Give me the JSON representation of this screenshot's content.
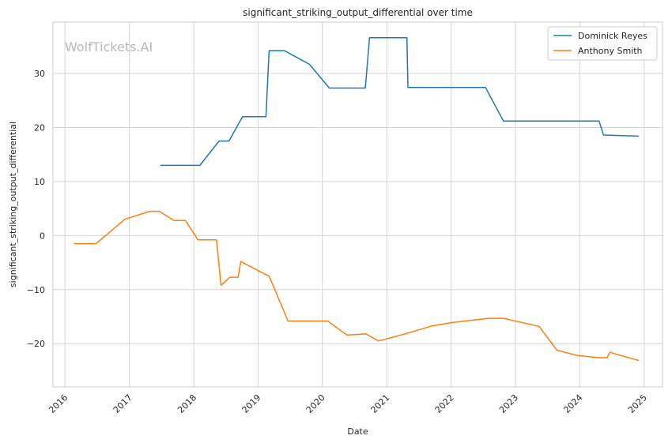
{
  "chart_data": {
    "type": "line",
    "title": "significant_striking_output_differential over time",
    "xlabel": "Date",
    "ylabel": "significant_striking_output_differential",
    "watermark": "WolfTickets.AI",
    "xlim": [
      "2015-10-25",
      "2025-04-15"
    ],
    "ylim": [
      -28,
      39.5
    ],
    "x_ticks": [
      "2016",
      "2017",
      "2018",
      "2019",
      "2020",
      "2021",
      "2022",
      "2023",
      "2024",
      "2025"
    ],
    "y_ticks": [
      -20,
      -10,
      0,
      10,
      20,
      30
    ],
    "y_tick_labels": [
      "−20",
      "−10",
      "0",
      "10",
      "20",
      "30"
    ],
    "grid": true,
    "legend_position": "top-right",
    "series": [
      {
        "name": "Dominick Reyes",
        "color": "#1f77b4",
        "points": [
          [
            "2017-06-25",
            13.0
          ],
          [
            "2018-02-05",
            13.0
          ],
          [
            "2018-05-25",
            17.5
          ],
          [
            "2018-07-20",
            17.5
          ],
          [
            "2018-10-05",
            22.0
          ],
          [
            "2019-02-15",
            22.0
          ],
          [
            "2019-03-05",
            34.2
          ],
          [
            "2019-06-01",
            34.2
          ],
          [
            "2019-10-20",
            31.7
          ],
          [
            "2020-02-10",
            27.3
          ],
          [
            "2020-09-01",
            27.3
          ],
          [
            "2020-09-25",
            36.6
          ],
          [
            "2021-04-25",
            36.6
          ],
          [
            "2021-05-01",
            27.4
          ],
          [
            "2022-07-15",
            27.4
          ],
          [
            "2022-10-25",
            21.2
          ],
          [
            "2024-04-20",
            21.2
          ],
          [
            "2024-05-15",
            18.6
          ],
          [
            "2024-12-01",
            18.4
          ]
        ]
      },
      {
        "name": "Anthony Smith",
        "color": "#ff7f0e",
        "points": [
          [
            "2016-02-20",
            -1.5
          ],
          [
            "2016-06-25",
            -1.5
          ],
          [
            "2016-12-05",
            3.0
          ],
          [
            "2017-04-25",
            4.5
          ],
          [
            "2017-06-20",
            4.5
          ],
          [
            "2017-09-10",
            2.8
          ],
          [
            "2017-11-15",
            2.8
          ],
          [
            "2018-01-25",
            -0.8
          ],
          [
            "2018-05-10",
            -0.8
          ],
          [
            "2018-06-05",
            -9.2
          ],
          [
            "2018-07-25",
            -7.7
          ],
          [
            "2018-09-10",
            -7.7
          ],
          [
            "2018-09-25",
            -4.8
          ],
          [
            "2019-02-20",
            -7.3
          ],
          [
            "2019-03-05",
            -7.5
          ],
          [
            "2019-06-20",
            -15.8
          ],
          [
            "2020-02-01",
            -15.8
          ],
          [
            "2020-05-20",
            -18.4
          ],
          [
            "2020-09-05",
            -18.2
          ],
          [
            "2020-11-15",
            -19.5
          ],
          [
            "2021-04-25",
            -18.1
          ],
          [
            "2021-09-15",
            -16.7
          ],
          [
            "2022-01-01",
            -16.1
          ],
          [
            "2022-08-01",
            -15.3
          ],
          [
            "2022-10-25",
            -15.3
          ],
          [
            "2023-05-15",
            -16.8
          ],
          [
            "2023-08-25",
            -21.2
          ],
          [
            "2023-12-20",
            -22.2
          ],
          [
            "2024-04-20",
            -22.6
          ],
          [
            "2024-06-05",
            -22.6
          ],
          [
            "2024-06-20",
            -21.6
          ],
          [
            "2024-12-01",
            -23.1
          ]
        ]
      }
    ]
  }
}
